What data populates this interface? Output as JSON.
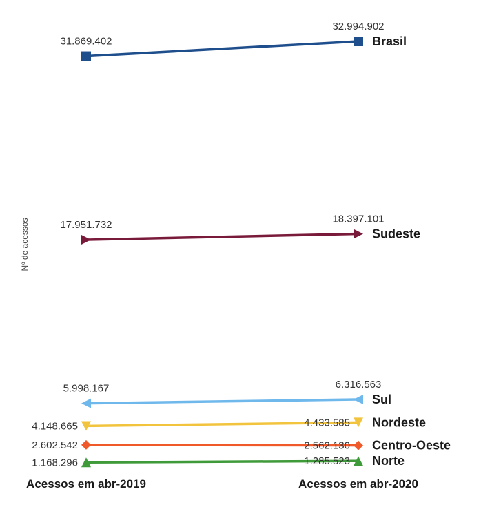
{
  "chart_data": {
    "type": "line",
    "categories": [
      "Acessos em abr-2019",
      "Acessos em abr-2020"
    ],
    "ylabel": "Nº de acessos",
    "series": [
      {
        "name": "Brasil",
        "values": [
          31869402,
          32994902
        ],
        "labels": [
          "31.869.402",
          "32.994.902"
        ],
        "color": "#1f4e8c",
        "marker": "square"
      },
      {
        "name": "Sudeste",
        "values": [
          17951732,
          18397101
        ],
        "labels": [
          "17.951.732",
          "18.397.101"
        ],
        "color": "#7a1a3a",
        "marker": "triangle-right"
      },
      {
        "name": "Sul",
        "values": [
          5998167,
          6316563
        ],
        "labels": [
          "5.998.167",
          "6.316.563"
        ],
        "color": "#6fb8ec",
        "marker": "triangle-left"
      },
      {
        "name": "Nordeste",
        "values": [
          4148665,
          4433585
        ],
        "labels": [
          "4.148.665",
          "4.433.585"
        ],
        "color": "#f2c43d",
        "marker": "triangle-down"
      },
      {
        "name": "Centro-Oeste",
        "values": [
          2602542,
          2562130
        ],
        "labels": [
          "2.602.542",
          "2.562.130"
        ],
        "color": "#f05a2a",
        "marker": "diamond"
      },
      {
        "name": "Norte",
        "values": [
          1168296,
          1285523
        ],
        "labels": [
          "1.168.296",
          "1.285.523"
        ],
        "color": "#3f9a3a",
        "marker": "triangle-up"
      }
    ]
  }
}
